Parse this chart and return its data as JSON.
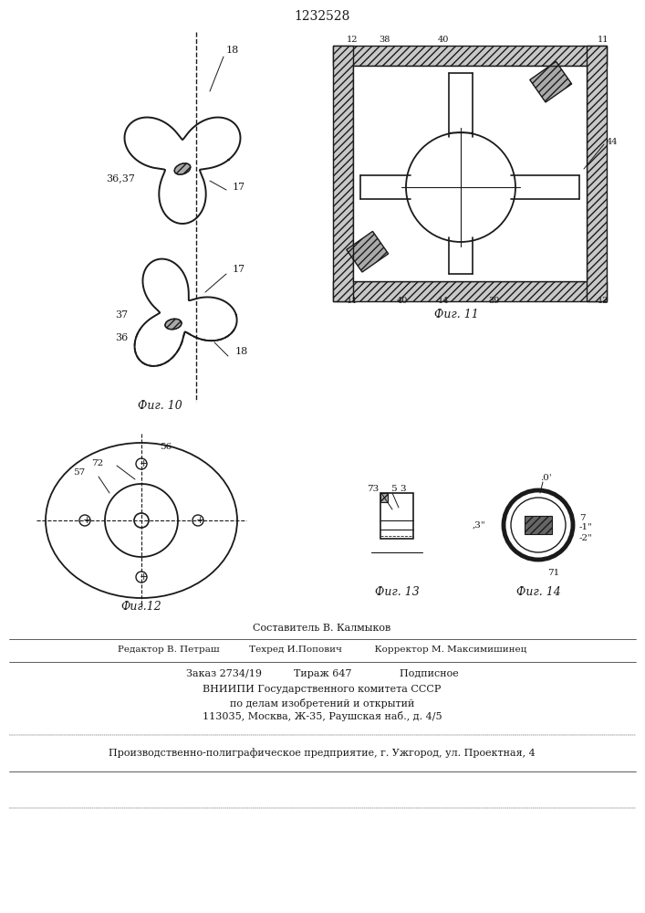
{
  "title": "1232528",
  "bg_color": "#ffffff",
  "line_color": "#1a1a1a",
  "fig10_label": "Фиг. 10",
  "fig11_label": "Фиг. 11",
  "fig12_label": "Фиг.12",
  "fig13_label": "Фиг. 13",
  "fig14_label": "Фиг. 14",
  "footer_lines": [
    "Составитель В. Калмыков",
    "Редактор В. Петраш          Техред И.Попович           Корректор М. Максимишинец",
    "Заказ 2734/19          Тираж 647               Подписное",
    "ВНИИПИ Государственного комитета СССР",
    "по делам изобретений и открытий",
    "113035, Москва, Ж-35, Раушская наб., д. 4/5",
    "Производственно-полиграфическое предприятие, г. Ужгород, ул. Проектная, 4"
  ]
}
